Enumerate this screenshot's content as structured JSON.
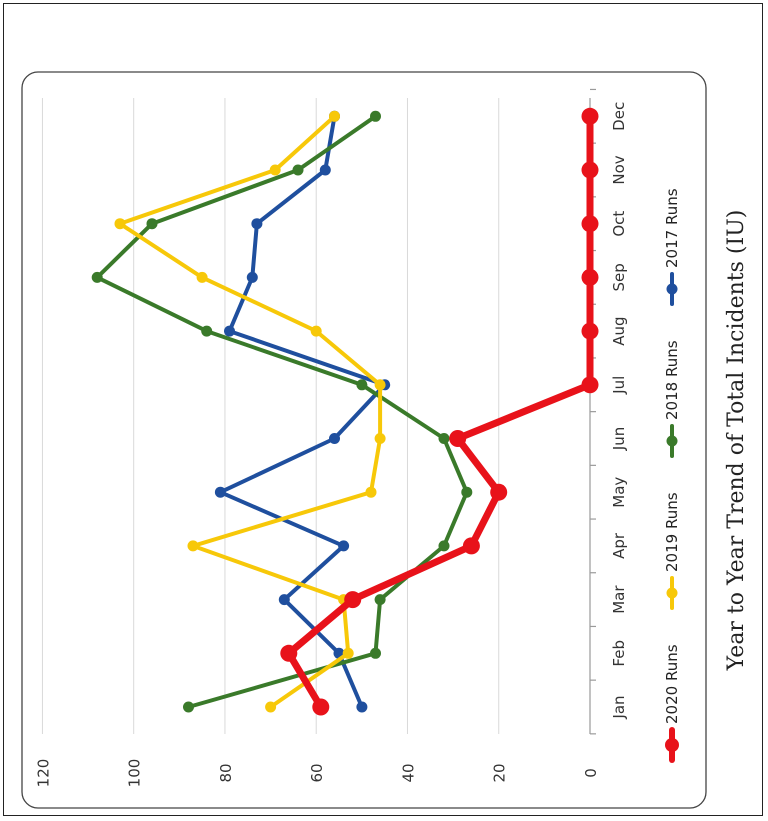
{
  "chart_data": {
    "type": "line",
    "title": "Year to Year Trend of Total Incidents (IU)",
    "categories": [
      "Jan",
      "Feb",
      "Mar",
      "Apr",
      "May",
      "Jun",
      "Jul",
      "Aug",
      "Sep",
      "Oct",
      "Nov",
      "Dec"
    ],
    "ylim": [
      0,
      120
    ],
    "yticks": [
      0,
      20,
      40,
      60,
      80,
      100,
      120
    ],
    "grid": true,
    "legend_position": "bottom",
    "orientation": "rotated 90 degrees counterclockwise",
    "series": [
      {
        "name": "2020 Runs",
        "color": "#e8121a",
        "values": [
          59,
          66,
          52,
          26,
          20,
          29,
          0,
          0,
          0,
          0,
          0,
          0
        ]
      },
      {
        "name": "2019 Runs",
        "color": "#f7c809",
        "values": [
          70,
          53,
          54,
          87,
          48,
          46,
          46,
          60,
          85,
          103,
          69,
          56
        ]
      },
      {
        "name": "2018 Runs",
        "color": "#3a7a2a",
        "values": [
          88,
          47,
          46,
          32,
          27,
          32,
          50,
          84,
          108,
          96,
          64,
          47
        ]
      },
      {
        "name": "2017 Runs",
        "color": "#1f4f9e",
        "values": [
          50,
          55,
          67,
          54,
          81,
          56,
          45,
          79,
          74,
          73,
          58,
          56
        ]
      }
    ]
  }
}
